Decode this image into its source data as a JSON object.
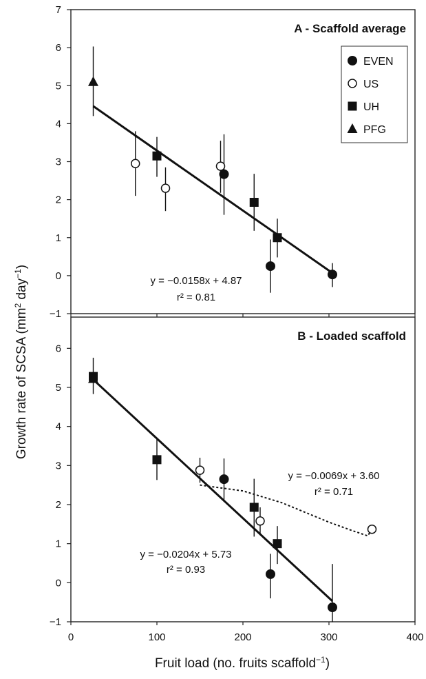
{
  "figure": {
    "xlabel_main": "Fruit load (no. fruits scaffold",
    "xlabel_sup": "−1",
    "xlabel_tail": ")",
    "ylabel_main": "Growth rate of SCSA (mm",
    "ylabel_sup1": "2",
    "ylabel_mid": " day",
    "ylabel_sup2": "−1",
    "ylabel_tail": ")"
  },
  "legend": [
    {
      "label": "EVEN",
      "marker": "filled-circle"
    },
    {
      "label": "US",
      "marker": "open-circle"
    },
    {
      "label": "UH",
      "marker": "filled-square"
    },
    {
      "label": "PFG",
      "marker": "filled-triangle"
    }
  ],
  "chart_data": [
    {
      "type": "scatter",
      "title": "A - Scaffold average",
      "xlim": [
        0,
        400
      ],
      "ylim": [
        -1,
        7
      ],
      "xticks": [],
      "yticks": [
        "−1",
        "0",
        "1",
        "2",
        "3",
        "4",
        "5",
        "6",
        "7"
      ],
      "series": [
        {
          "name": "EVEN",
          "marker": "filled-circle",
          "points": [
            {
              "x": 178,
              "y": 2.67,
              "err": [
                1.07,
                1.05
              ]
            },
            {
              "x": 232,
              "y": 0.25,
              "err": [
                0.7,
                0.7
              ]
            },
            {
              "x": 304,
              "y": 0.03,
              "err": [
                0.33,
                0.3
              ]
            }
          ]
        },
        {
          "name": "US",
          "marker": "open-circle",
          "points": [
            {
              "x": 75,
              "y": 2.95,
              "err": [
                0.85,
                0.85
              ]
            },
            {
              "x": 110,
              "y": 2.3,
              "err": [
                0.6,
                0.55
              ]
            },
            {
              "x": 174,
              "y": 2.88,
              "err": [
                0.7,
                0.67
              ]
            }
          ]
        },
        {
          "name": "UH",
          "marker": "filled-square",
          "points": [
            {
              "x": 100,
              "y": 3.15,
              "err": [
                0.55,
                0.5
              ]
            },
            {
              "x": 213,
              "y": 1.93,
              "err": [
                0.75,
                0.75
              ]
            },
            {
              "x": 240,
              "y": 1.0,
              "err": [
                0.52,
                0.5
              ]
            }
          ]
        },
        {
          "name": "PFG",
          "marker": "filled-triangle",
          "points": [
            {
              "x": 26,
              "y": 5.1,
              "err": [
                0.9,
                0.93
              ]
            }
          ]
        }
      ],
      "fits": [
        {
          "style": "solid",
          "x": [
            26,
            304
          ],
          "y": [
            4.46,
            0.07
          ],
          "equation": "y = −0.0158x + 4.87",
          "r2": "r² = 0.81"
        }
      ]
    },
    {
      "type": "scatter",
      "title": "B - Loaded scaffold",
      "xlim": [
        0,
        400
      ],
      "ylim": [
        -1,
        6.8
      ],
      "xticks": [
        "0",
        "100",
        "200",
        "300",
        "400"
      ],
      "yticks": [
        "−1",
        "0",
        "1",
        "2",
        "3",
        "4",
        "5",
        "6"
      ],
      "series": [
        {
          "name": "EVEN",
          "marker": "filled-circle",
          "points": [
            {
              "x": 178,
              "y": 2.65,
              "err": [
                0.58,
                0.53
              ]
            },
            {
              "x": 232,
              "y": 0.22,
              "err": [
                0.62,
                0.52
              ]
            },
            {
              "x": 304,
              "y": -0.63,
              "err": [
                0.38,
                1.11
              ]
            }
          ]
        },
        {
          "name": "US",
          "marker": "open-circle",
          "points": [
            {
              "x": 150,
              "y": 2.88,
              "err": [
                0.32,
                0.32
              ]
            },
            {
              "x": 220,
              "y": 1.58,
              "err": [
                0.35,
                0.35
              ]
            },
            {
              "x": 350,
              "y": 1.37,
              "err": [
                0.1,
                0.1
              ]
            }
          ]
        },
        {
          "name": "UH",
          "marker": "filled-square",
          "points": [
            {
              "x": 26,
              "y": 5.28,
              "err": [
                0.45,
                0.48
              ]
            },
            {
              "x": 100,
              "y": 3.15,
              "err": [
                0.52,
                0.52
              ]
            },
            {
              "x": 213,
              "y": 1.93,
              "err": [
                0.75,
                0.73
              ]
            },
            {
              "x": 240,
              "y": 1.0,
              "err": [
                0.52,
                0.45
              ]
            }
          ]
        },
        {
          "name": "PFG",
          "marker": "filled-triangle",
          "points": [
            {
              "x": 26,
              "y": 5.22,
              "err": [
                0,
                0
              ]
            }
          ]
        }
      ],
      "fits": [
        {
          "style": "solid",
          "x": [
            26,
            304
          ],
          "y": [
            5.2,
            -0.47
          ],
          "equation": "y = −0.0204x + 5.73",
          "r2": "r² = 0.93"
        },
        {
          "style": "dashed",
          "x": [
            150,
            200,
            245,
            300,
            325,
            345,
            350
          ],
          "y": [
            2.5,
            2.35,
            2.05,
            1.55,
            1.35,
            1.2,
            1.37
          ],
          "equation": "y = −0.0069x + 3.60",
          "r2": "r² = 0.71"
        }
      ]
    }
  ]
}
